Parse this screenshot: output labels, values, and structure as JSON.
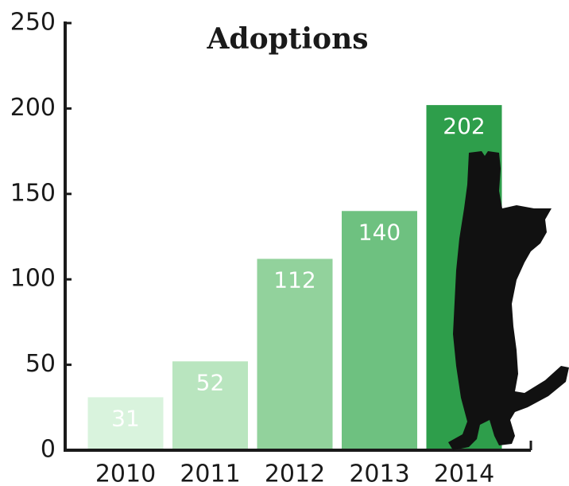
{
  "chart_data": {
    "type": "bar",
    "title": "Adoptions",
    "categories": [
      "2010",
      "2011",
      "2012",
      "2013",
      "2014"
    ],
    "values": [
      31,
      52,
      112,
      140,
      202
    ],
    "colors": [
      "#d9f3dd",
      "#b9e5bf",
      "#92d29c",
      "#6ec180",
      "#2e9e4b"
    ],
    "ylim": [
      0,
      250
    ],
    "yticks": [
      0,
      50,
      100,
      150,
      200,
      250
    ]
  }
}
